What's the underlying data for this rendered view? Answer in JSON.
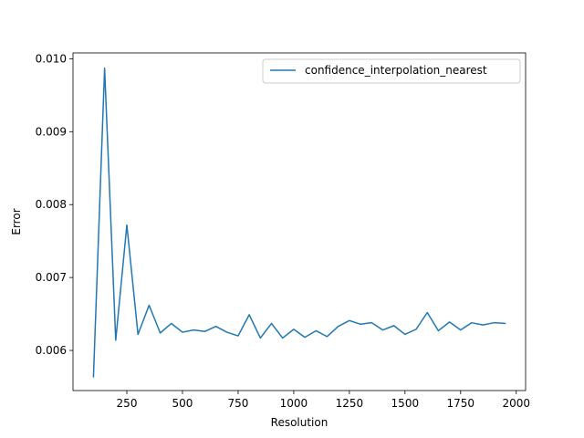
{
  "chart_data": {
    "type": "line",
    "title": "",
    "xlabel": "Resolution",
    "ylabel": "Error",
    "xlim": [
      8,
      2042
    ],
    "ylim": [
      0.00545,
      0.01008
    ],
    "xticks": [
      250,
      500,
      750,
      1000,
      1250,
      1500,
      1750,
      2000
    ],
    "yticks": [
      0.006,
      0.007,
      0.008,
      0.009,
      0.01
    ],
    "xtick_labels": [
      "250",
      "500",
      "750",
      "1000",
      "1250",
      "1500",
      "1750",
      "2000"
    ],
    "ytick_labels": [
      "0.006",
      "0.007",
      "0.008",
      "0.009",
      "0.010"
    ],
    "grid": false,
    "legend_position": "top-right",
    "series_color": "#1f77b4",
    "series": [
      {
        "name": "confidence_interpolation_nearest",
        "x": [
          100,
          150,
          200,
          250,
          300,
          350,
          400,
          450,
          500,
          550,
          600,
          650,
          700,
          750,
          800,
          850,
          900,
          950,
          1000,
          1050,
          1100,
          1150,
          1200,
          1250,
          1300,
          1350,
          1400,
          1450,
          1500,
          1550,
          1600,
          1650,
          1700,
          1750,
          1800,
          1850,
          1900,
          1950
        ],
        "y": [
          0.00564,
          0.00987,
          0.00614,
          0.00772,
          0.00622,
          0.00662,
          0.00624,
          0.00637,
          0.00625,
          0.00628,
          0.00626,
          0.00633,
          0.00625,
          0.0062,
          0.00649,
          0.00617,
          0.00637,
          0.00617,
          0.00629,
          0.00618,
          0.00627,
          0.00619,
          0.00633,
          0.00641,
          0.00636,
          0.00638,
          0.00628,
          0.00634,
          0.00622,
          0.00629,
          0.00652,
          0.00627,
          0.00639,
          0.00628,
          0.00638,
          0.00635,
          0.00638,
          0.00637
        ]
      }
    ]
  }
}
